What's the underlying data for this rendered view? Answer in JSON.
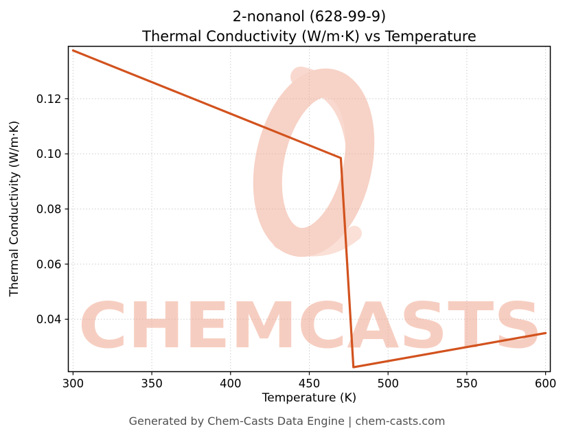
{
  "chart_data": {
    "type": "line",
    "title_line1": "2-nonanol (628-99-9)",
    "title_line2": "Thermal Conductivity (W/m·K) vs Temperature",
    "xlabel": "Temperature (K)",
    "ylabel": "Thermal Conductivity (W/m·K)",
    "xlim": [
      297,
      603
    ],
    "ylim": [
      0.021,
      0.139
    ],
    "xticks": [
      300,
      350,
      400,
      450,
      500,
      550,
      600
    ],
    "yticks": [
      0.04,
      0.06,
      0.08,
      0.1,
      0.12
    ],
    "grid": true,
    "legend": "none",
    "line_color": "#d2521e",
    "series": [
      {
        "name": "Thermal Conductivity (W/m·K)",
        "x": [
          300,
          470,
          478,
          600
        ],
        "y": [
          0.1375,
          0.0985,
          0.0226,
          0.035
        ]
      }
    ]
  },
  "watermark": {
    "text": "CHEMCASTS",
    "color": "#f0a78f"
  },
  "footer": {
    "text": "Generated by Chem-Casts Data Engine | chem-casts.com"
  }
}
